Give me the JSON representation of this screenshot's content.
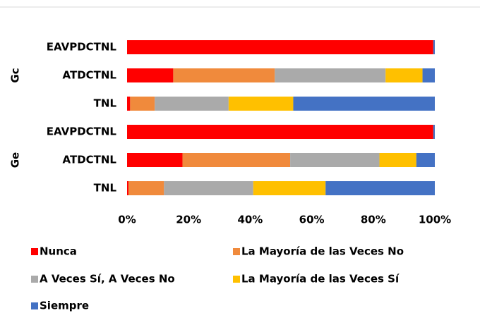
{
  "chart_data": {
    "type": "stacked_barh",
    "groups": [
      "Gc",
      "Ge"
    ],
    "categories": [
      "EAVPDCTNL",
      "ATDCTNL",
      "TNL",
      "EAVPDCTNL",
      "ATDCTNL",
      "TNL"
    ],
    "series": [
      {
        "name": "Nunca",
        "color": "#ff0000",
        "values": [
          99.5,
          15,
          1,
          99.5,
          18,
          0.5
        ]
      },
      {
        "name": "La Mayoría de las Veces No",
        "color": "#f08a3c",
        "values": [
          0,
          33,
          8,
          0,
          35,
          11.5
        ]
      },
      {
        "name": "A Veces Sí, A Veces No",
        "color": "#aaaaaa",
        "values": [
          0,
          36,
          24,
          0,
          29,
          29
        ]
      },
      {
        "name": "La Mayoría de las Veces Sí",
        "color": "#ffc000",
        "values": [
          0,
          12,
          21,
          0,
          12,
          23.5
        ]
      },
      {
        "name": "Siempre",
        "color": "#4472c4",
        "values": [
          0.5,
          4,
          46,
          0.5,
          6,
          35.5
        ]
      }
    ],
    "xlim": [
      0,
      100
    ],
    "xticks": [
      {
        "value": 0,
        "label": "0%"
      },
      {
        "value": 20,
        "label": "20%"
      },
      {
        "value": 40,
        "label": "40%"
      },
      {
        "value": 60,
        "label": "60%"
      },
      {
        "value": 80,
        "label": "80%"
      },
      {
        "value": 100,
        "label": "100%"
      }
    ]
  }
}
